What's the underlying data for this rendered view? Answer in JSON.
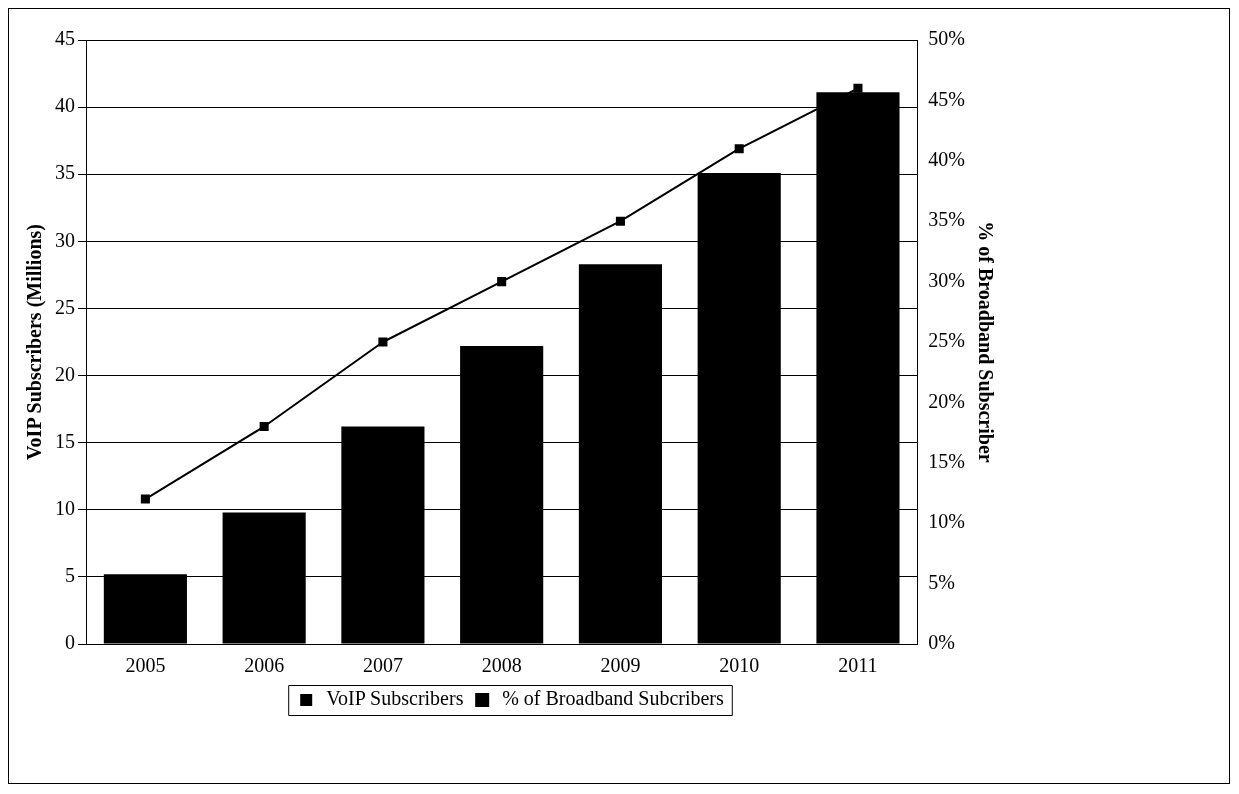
{
  "chart_data": {
    "type": "bar",
    "categories": [
      "2005",
      "2006",
      "2007",
      "2008",
      "2009",
      "2010",
      "2011"
    ],
    "series": [
      {
        "name": "VoIP Subscribers",
        "color": "#000000",
        "values": [
          5.2,
          9.8,
          16.2,
          22.2,
          28.3,
          35.1,
          41.1
        ]
      },
      {
        "name": "% of Broadband Subcribers",
        "type": "line",
        "axis": "y2",
        "color": "#000000",
        "values": [
          12,
          18,
          25,
          30,
          35,
          41,
          46
        ]
      }
    ],
    "ylabel": "VoIP Subscribers (Millions)",
    "y2label": "% of Broadband Subscriber",
    "ylim": [
      0,
      45
    ],
    "yticks": [
      0,
      5,
      10,
      15,
      20,
      25,
      30,
      35,
      40,
      45
    ],
    "y2lim": [
      0,
      50
    ],
    "y2ticks": [
      {
        "value": 0,
        "label": "0%"
      },
      {
        "value": 5,
        "label": "5%"
      },
      {
        "value": 10,
        "label": "10%"
      },
      {
        "value": 15,
        "label": "15%"
      },
      {
        "value": 20,
        "label": "20%"
      },
      {
        "value": 25,
        "label": "25%"
      },
      {
        "value": 30,
        "label": "30%"
      },
      {
        "value": 35,
        "label": "35%"
      },
      {
        "value": 40,
        "label": "40%"
      },
      {
        "value": 45,
        "label": "45%"
      },
      {
        "value": 50,
        "label": "50%"
      }
    ],
    "grid": "y",
    "legend": "bottom",
    "marker": "square"
  }
}
